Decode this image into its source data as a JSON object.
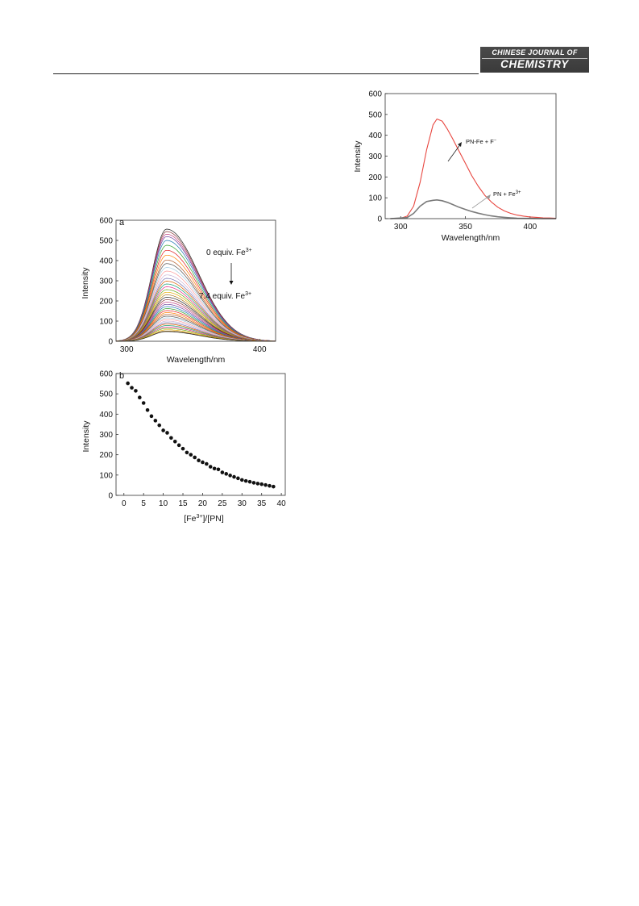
{
  "header": {
    "journal_line1": "CHINESE JOURNAL OF",
    "journal_line2": "CHEMISTRY"
  },
  "chart_data": [
    {
      "type": "line",
      "panel_label": "a",
      "xlabel": "Wavelength/nm",
      "ylabel": "Intensity",
      "xlim": [
        292,
        412
      ],
      "ylim": [
        0,
        600
      ],
      "x_ticks": [
        300,
        400
      ],
      "y_ticks": [
        0,
        100,
        200,
        300,
        400,
        500,
        600
      ],
      "annotation_top": "0 equiv. Fe",
      "annotation_top_sup": "3+",
      "annotation_bottom": "7.4 equiv. Fe",
      "annotation_bottom_sup": "3+",
      "peak_x": 330,
      "peak_values": [
        556,
        544,
        531,
        519,
        500,
        476,
        451,
        427,
        403,
        385,
        366,
        348,
        329,
        312,
        298,
        284,
        270,
        256,
        243,
        230,
        218,
        206,
        194,
        183,
        172,
        162,
        152,
        142,
        133,
        124,
        116,
        108,
        100,
        92,
        85,
        78,
        71,
        64,
        57,
        51,
        48
      ],
      "series_colors": [
        "#222222",
        "#8b3a3a",
        "#c04080",
        "#6a3d9a",
        "#1f78b4",
        "#33a02c",
        "#e31a1c",
        "#ff7f00",
        "#b15928",
        "#555555",
        "#a6cee3",
        "#fb9a99",
        "#cab2d6",
        "#7570b3",
        "#d95f02",
        "#1b9e77",
        "#e7298a",
        "#66a61e",
        "#e6ab02",
        "#a6761d"
      ]
    },
    {
      "type": "scatter",
      "panel_label": "b",
      "xlabel_prefix": "[Fe",
      "xlabel_sup": "3+",
      "xlabel_suffix": "]/[PN]",
      "ylabel": "Intensity",
      "xlim": [
        -2,
        41
      ],
      "ylim": [
        0,
        600
      ],
      "x_ticks": [
        0,
        5,
        10,
        15,
        20,
        25,
        30,
        35,
        40
      ],
      "y_ticks": [
        0,
        100,
        200,
        300,
        400,
        500,
        600
      ],
      "x": [
        1,
        2,
        3,
        4,
        5,
        6,
        7,
        8,
        9,
        10,
        11,
        12,
        13,
        14,
        15,
        16,
        17,
        18,
        19,
        20,
        21,
        22,
        23,
        24,
        25,
        26,
        27,
        28,
        29,
        30,
        31,
        32,
        33,
        34,
        35,
        36,
        37,
        38
      ],
      "y": [
        552,
        530,
        515,
        482,
        455,
        420,
        390,
        368,
        345,
        320,
        308,
        283,
        265,
        247,
        230,
        211,
        200,
        187,
        172,
        163,
        155,
        141,
        132,
        128,
        113,
        106,
        98,
        91,
        84,
        76,
        71,
        67,
        62,
        58,
        55,
        51,
        47,
        43
      ]
    },
    {
      "type": "line",
      "xlabel": "Wavelength/nm",
      "ylabel": "Intensity",
      "xlim": [
        288,
        420
      ],
      "ylim": [
        0,
        600
      ],
      "x_ticks": [
        300,
        350,
        400
      ],
      "y_ticks": [
        0,
        100,
        200,
        300,
        400,
        500,
        600
      ],
      "series": [
        {
          "name": "PN-Fe + F",
          "name_sup": "−",
          "color": "#e8463f",
          "x": [
            292,
            300,
            305,
            310,
            315,
            320,
            325,
            328,
            332,
            336,
            340,
            345,
            350,
            355,
            360,
            365,
            370,
            375,
            380,
            385,
            390,
            395,
            400,
            405,
            410,
            415,
            420
          ],
          "y": [
            0,
            2,
            12,
            60,
            175,
            330,
            450,
            478,
            468,
            430,
            385,
            325,
            265,
            205,
            155,
            112,
            80,
            55,
            37,
            25,
            17,
            12,
            8,
            6,
            4,
            3,
            2
          ]
        },
        {
          "name": "PN + Fe",
          "name_sup": "3+",
          "color": "#7a7a7a",
          "x": [
            292,
            305,
            310,
            315,
            320,
            325,
            328,
            332,
            336,
            340,
            345,
            350,
            355,
            360,
            365,
            370,
            375,
            380,
            385,
            390,
            400,
            410,
            420
          ],
          "y": [
            0,
            5,
            25,
            60,
            82,
            88,
            90,
            86,
            78,
            68,
            55,
            44,
            34,
            26,
            19,
            13,
            9,
            6,
            4,
            2,
            1,
            0,
            0
          ]
        }
      ]
    }
  ]
}
